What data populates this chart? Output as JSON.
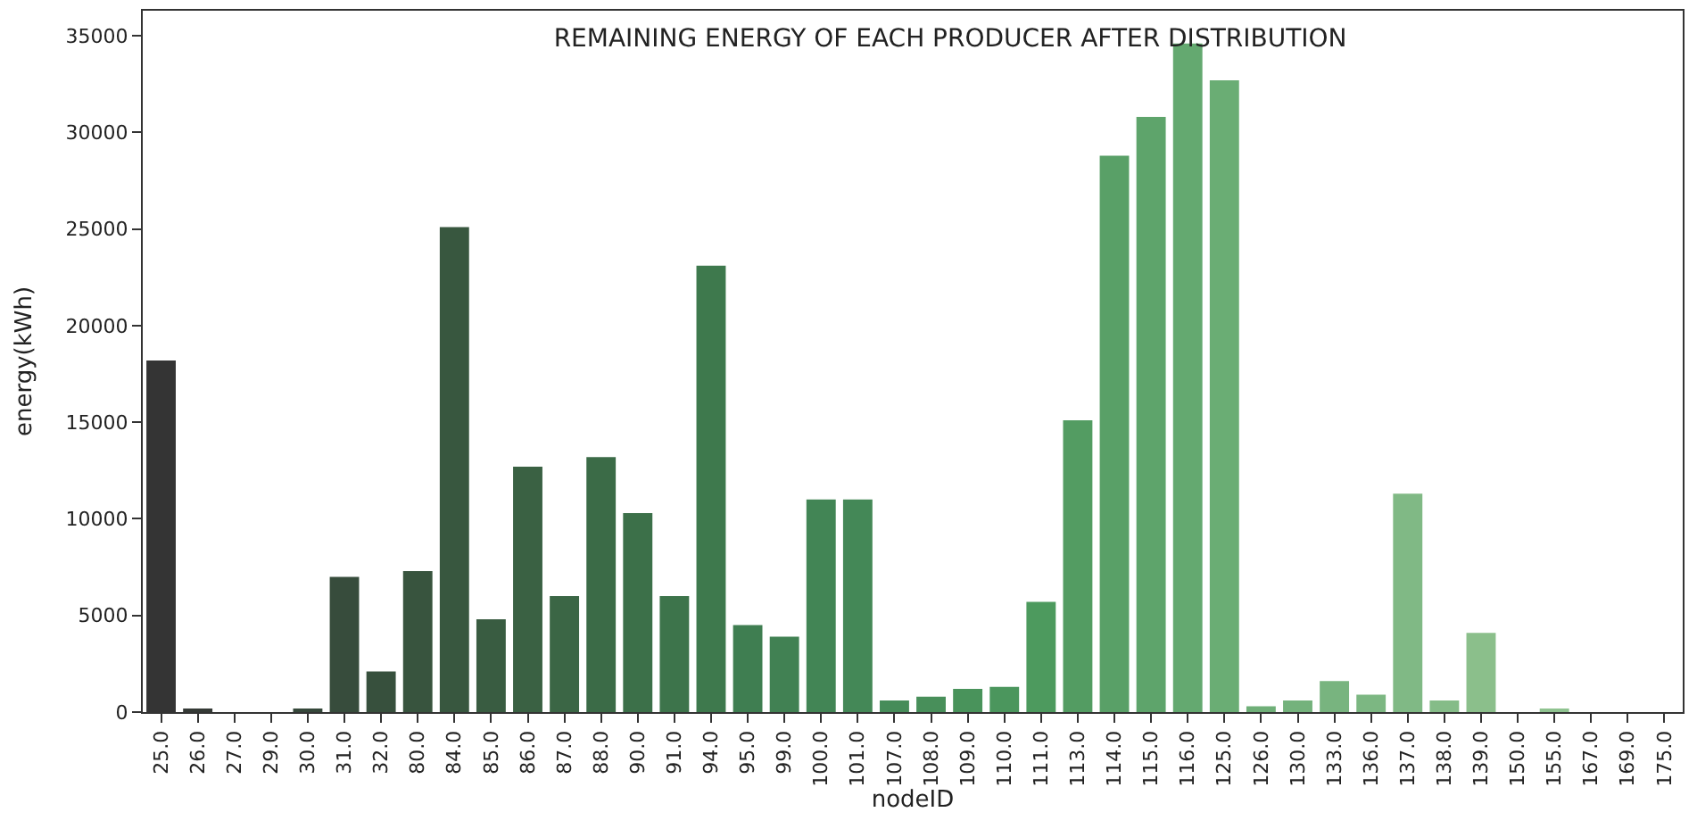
{
  "chart_data": {
    "type": "bar",
    "title": "REMAINING ENERGY OF EACH PRODUCER AFTER DISTRIBUTION",
    "xlabel": "nodeID",
    "ylabel": "energy(kWh)",
    "categories": [
      "25.0",
      "26.0",
      "27.0",
      "29.0",
      "30.0",
      "31.0",
      "32.0",
      "80.0",
      "84.0",
      "85.0",
      "86.0",
      "87.0",
      "88.0",
      "90.0",
      "91.0",
      "94.0",
      "95.0",
      "99.0",
      "100.0",
      "101.0",
      "107.0",
      "108.0",
      "109.0",
      "110.0",
      "111.0",
      "113.0",
      "114.0",
      "115.0",
      "116.0",
      "125.0",
      "126.0",
      "130.0",
      "133.0",
      "136.0",
      "137.0",
      "138.0",
      "139.0",
      "150.0",
      "155.0",
      "167.0",
      "169.0",
      "175.0"
    ],
    "values": [
      18200,
      100,
      0,
      0,
      100,
      7000,
      2100,
      7300,
      25100,
      4800,
      12700,
      6000,
      13200,
      10300,
      6000,
      23100,
      4500,
      3900,
      11000,
      11000,
      600,
      800,
      1200,
      1300,
      5700,
      15100,
      28800,
      30800,
      34600,
      32700,
      300,
      600,
      1600,
      900,
      11300,
      600,
      4100,
      0,
      100,
      0,
      0,
      0
    ],
    "colors": [
      "#343434",
      "#353a36",
      "#353f37",
      "#36443a",
      "#36483b",
      "#374c3c",
      "#37503d",
      "#38543e",
      "#38573f",
      "#395c41",
      "#3a6143",
      "#3b6645",
      "#3b6b47",
      "#3c7049",
      "#3d744b",
      "#3e794d",
      "#3f7e51",
      "#418153",
      "#428555",
      "#448857",
      "#468c59",
      "#488f5a",
      "#49935b",
      "#4b965d",
      "#4d9a5e",
      "#539c62",
      "#59a067",
      "#5ea46b",
      "#64a970",
      "#6aad74",
      "#6faf78",
      "#74b27c",
      "#78b47f",
      "#7cb782",
      "#80b985",
      "#85bc88",
      "#8bbf8b",
      "#8dc18d",
      "#8fc390",
      "#91c492",
      "#93c694",
      "#95c796"
    ],
    "ylim": [
      0,
      36300
    ],
    "yticks": [
      0,
      5000,
      10000,
      15000,
      20000,
      25000,
      30000,
      35000
    ]
  }
}
